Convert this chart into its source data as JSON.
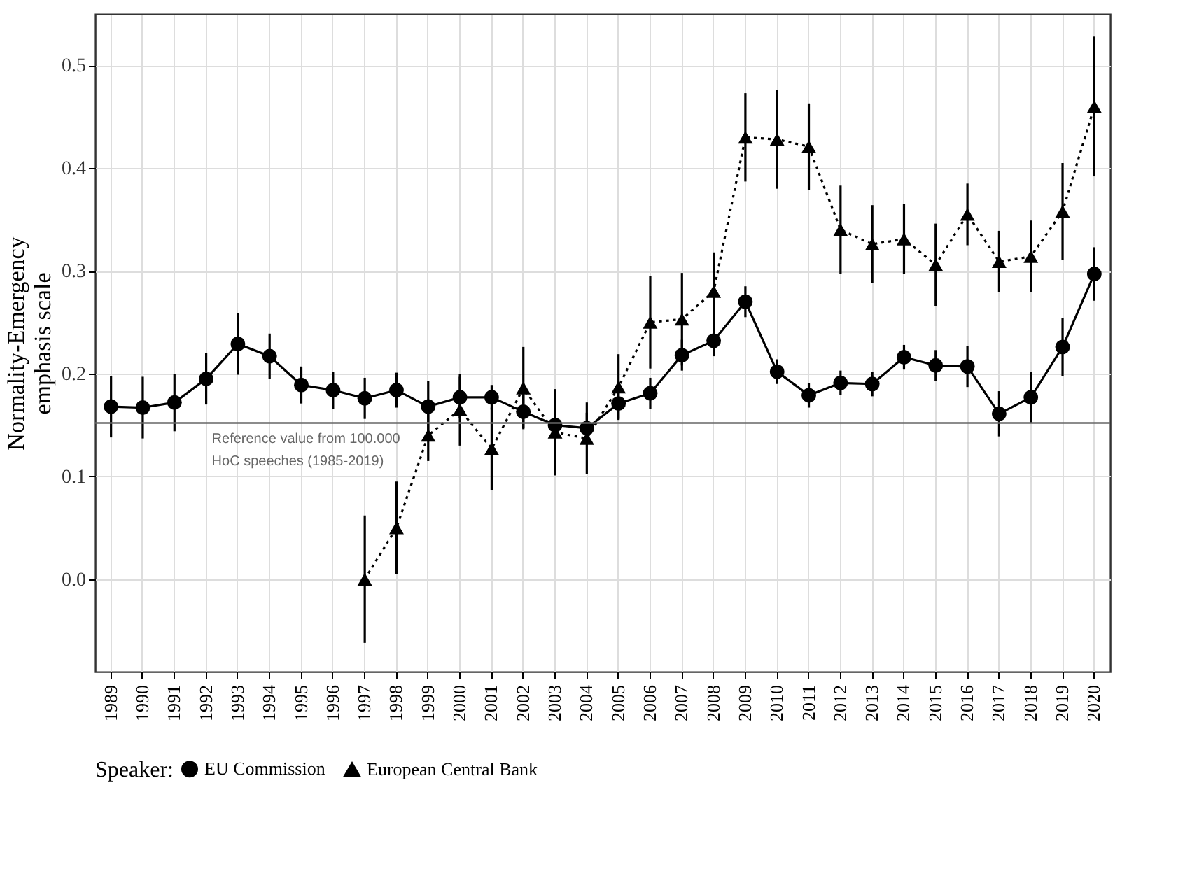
{
  "chart_data": {
    "type": "line",
    "ylabel": "Normality-Emergency\nemphasis scale",
    "legend_title": "Speaker:",
    "categories": [
      "1989",
      "1990",
      "1991",
      "1992",
      "1993",
      "1994",
      "1995",
      "1996",
      "1997",
      "1998",
      "1999",
      "2000",
      "2001",
      "2002",
      "2003",
      "2004",
      "2005",
      "2006",
      "2007",
      "2008",
      "2009",
      "2010",
      "2011",
      "2012",
      "2013",
      "2014",
      "2015",
      "2016",
      "2017",
      "2018",
      "2019",
      "2020"
    ],
    "series": [
      {
        "name": "EU Commission",
        "color": "#000000",
        "marker": "circle",
        "line_style": "solid",
        "values": [
          0.168,
          0.167,
          0.172,
          0.195,
          0.229,
          0.217,
          0.189,
          0.184,
          0.176,
          0.184,
          0.168,
          0.177,
          0.177,
          0.163,
          0.15,
          0.147,
          0.171,
          0.181,
          0.218,
          0.232,
          0.27,
          0.202,
          0.179,
          0.191,
          0.19,
          0.216,
          0.208,
          0.207,
          0.161,
          0.177,
          0.226,
          0.297
        ],
        "errors": [
          0.03,
          0.03,
          0.028,
          0.025,
          0.03,
          0.022,
          0.018,
          0.018,
          0.02,
          0.017,
          0.025,
          0.02,
          0.012,
          0.016,
          0.02,
          0.015,
          0.015,
          0.015,
          0.015,
          0.015,
          0.015,
          0.012,
          0.012,
          0.012,
          0.012,
          0.012,
          0.015,
          0.02,
          0.022,
          0.025,
          0.028,
          0.026
        ]
      },
      {
        "name": "European Central Bank",
        "color": "#000000",
        "marker": "triangle",
        "line_style": "dotted",
        "values": [
          null,
          null,
          null,
          null,
          null,
          null,
          null,
          null,
          0.0,
          0.05,
          0.14,
          0.165,
          0.127,
          0.186,
          0.143,
          0.137,
          0.187,
          0.25,
          0.253,
          0.28,
          0.43,
          0.428,
          0.421,
          0.34,
          0.326,
          0.331,
          0.306,
          0.355,
          0.309,
          0.314,
          0.358,
          0.46
        ],
        "errors": [
          null,
          null,
          null,
          null,
          null,
          null,
          null,
          null,
          0.062,
          0.045,
          0.025,
          0.035,
          0.04,
          0.04,
          0.042,
          0.035,
          0.032,
          0.045,
          0.045,
          0.038,
          0.043,
          0.048,
          0.042,
          0.043,
          0.038,
          0.034,
          0.04,
          0.03,
          0.03,
          0.035,
          0.047,
          0.068
        ]
      }
    ],
    "ylim": [
      -0.09,
      0.55
    ],
    "yticks": [
      {
        "value": 0,
        "label": "0.0"
      },
      0.1,
      0.2,
      0.3,
      0.4,
      0.5
    ],
    "ref_lines": [
      {
        "axis": "y",
        "value": 0.152,
        "label": "Reference value from 100.000\nHoC speeches (1985-2019)",
        "color": "#666666"
      }
    ],
    "grid": true,
    "legend": "bottom"
  }
}
